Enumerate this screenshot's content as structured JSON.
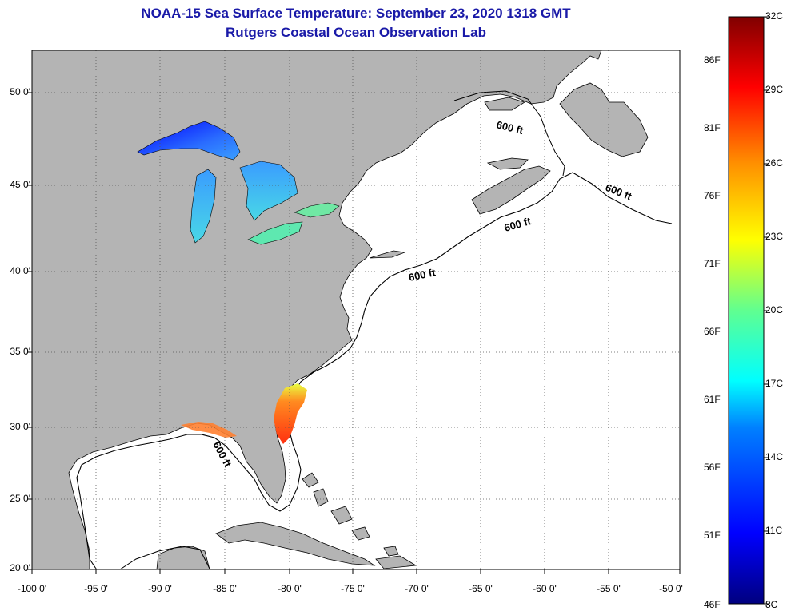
{
  "title": {
    "line1": "NOAA-15 Sea Surface Temperature:  September 23, 2020 1318 GMT",
    "line2": "Rutgers Coastal Ocean Observation Lab"
  },
  "map": {
    "lon_range": [
      -100,
      -50
    ],
    "lat_range": [
      20,
      52.5
    ],
    "x_ticks": [
      "-100 0'",
      "-95 0'",
      "-90 0'",
      "-85 0'",
      "-80 0'",
      "-75 0'",
      "-70 0'",
      "-65 0'",
      "-60 0'",
      "-55 0'",
      "-50 0'"
    ],
    "y_ticks": [
      "50 0'",
      "45 0'",
      "40 0'",
      "35 0'",
      "30 0'",
      "25 0'",
      "20 0'"
    ],
    "contour_label": "600 ft",
    "colors": {
      "land": "#b4b4b4",
      "ocean": "#ffffff",
      "grid": "#555555"
    }
  },
  "colorbar": {
    "celsius": [
      "32C",
      "29C",
      "26C",
      "23C",
      "20C",
      "17C",
      "14C",
      "11C",
      "8C"
    ],
    "fahrenheit": [
      "86F",
      "81F",
      "76F",
      "71F",
      "66F",
      "61F",
      "56F",
      "51F",
      "46F"
    ],
    "range_c": [
      8,
      32
    ]
  }
}
